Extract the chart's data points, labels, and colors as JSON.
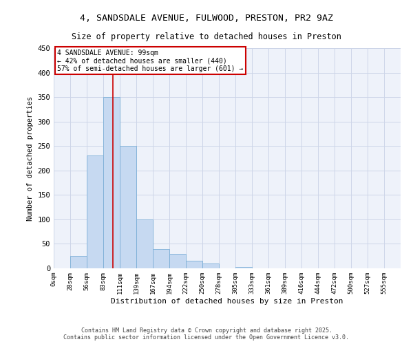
{
  "title_line1": "4, SANDSDALE AVENUE, FULWOOD, PRESTON, PR2 9AZ",
  "title_line2": "Size of property relative to detached houses in Preston",
  "xlabel": "Distribution of detached houses by size in Preston",
  "ylabel": "Number of detached properties",
  "bar_labels": [
    "0sqm",
    "28sqm",
    "56sqm",
    "83sqm",
    "111sqm",
    "139sqm",
    "167sqm",
    "194sqm",
    "222sqm",
    "250sqm",
    "278sqm",
    "305sqm",
    "333sqm",
    "361sqm",
    "389sqm",
    "416sqm",
    "444sqm",
    "472sqm",
    "500sqm",
    "527sqm",
    "555sqm"
  ],
  "bar_heights": [
    0,
    25,
    230,
    350,
    250,
    100,
    40,
    30,
    15,
    10,
    0,
    3,
    0,
    0,
    0,
    0,
    0,
    0,
    0,
    0,
    0
  ],
  "bar_color": "#c6d9f1",
  "bar_edge_color": "#7aaed6",
  "ylim": [
    0,
    450
  ],
  "yticks": [
    0,
    50,
    100,
    150,
    200,
    250,
    300,
    350,
    400,
    450
  ],
  "property_label": "4 SANDSDALE AVENUE: 99sqm",
  "annotation_line1": "← 42% of detached houses are smaller (440)",
  "annotation_line2": "57% of semi-detached houses are larger (601) →",
  "vline_x_index": 3.57,
  "vline_color": "#cc0000",
  "box_color": "#cc0000",
  "grid_color": "#ccd5e8",
  "bg_color": "#eef2fa",
  "footer_line1": "Contains HM Land Registry data © Crown copyright and database right 2025.",
  "footer_line2": "Contains public sector information licensed under the Open Government Licence v3.0."
}
